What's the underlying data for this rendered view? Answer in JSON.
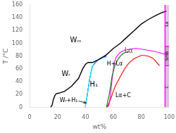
{
  "chart_data": {
    "type": "line",
    "xlabel": "wt%",
    "ylabel": "T /°C",
    "xlim": [
      0,
      100
    ],
    "ylim": [
      0,
      160
    ],
    "xticks": [
      0,
      20,
      40,
      60,
      80,
      100
    ],
    "yticks": [
      0,
      20,
      40,
      60,
      80,
      100,
      120,
      140,
      160
    ],
    "grid": false,
    "series": [
      {
        "color": "black",
        "x": [
          15,
          16,
          17,
          18,
          19,
          20,
          21,
          22,
          25,
          30,
          35,
          38,
          40,
          41,
          42,
          43,
          44,
          45,
          50,
          55,
          60,
          65,
          70,
          75,
          80,
          85,
          90,
          95,
          98
        ],
        "values": [
          0,
          3,
          12,
          18,
          21,
          22,
          22,
          23,
          25,
          33,
          45,
          60,
          67,
          69,
          70,
          70,
          70,
          70,
          75,
          82,
          92,
          100,
          110,
          120,
          130,
          137,
          143,
          148,
          150
        ]
      },
      {
        "color": "cyan",
        "x": [
          40,
          40,
          41,
          42,
          43,
          44,
          45,
          46,
          47,
          48,
          50,
          52,
          54,
          55
        ],
        "values": [
          0,
          3,
          15,
          30,
          44,
          55,
          63,
          68,
          71,
          73,
          75,
          77,
          78,
          78
        ]
      },
      {
        "color": "blue",
        "x": [
          40,
          40,
          41,
          42,
          43,
          44,
          45,
          47,
          49,
          51,
          53,
          55
        ],
        "values": [
          0,
          3,
          15,
          30,
          44,
          55,
          64,
          70,
          74,
          77,
          79,
          80
        ]
      },
      {
        "color": "green",
        "x": [
          55,
          57,
          59,
          61,
          63,
          65,
          67,
          69,
          71
        ],
        "values": [
          0,
          20,
          48,
          65,
          74,
          80,
          84,
          86,
          87
        ]
      },
      {
        "color": "magenta",
        "x": [
          56,
          57,
          58,
          59,
          60,
          61,
          62,
          64,
          66,
          68,
          70,
          73,
          76,
          80,
          85,
          90,
          95,
          98
        ],
        "values": [
          0,
          5,
          20,
          42,
          60,
          72,
          78,
          84,
          87,
          89,
          90,
          91,
          92,
          91,
          89,
          87,
          84,
          82
        ]
      },
      {
        "color": "red",
        "x": [
          55,
          56,
          57,
          58,
          59,
          60,
          62,
          65,
          68,
          70,
          72,
          75,
          78,
          80,
          82,
          85,
          88,
          90,
          93
        ],
        "values": [
          0,
          3,
          8,
          13,
          19,
          26,
          36,
          48,
          60,
          66,
          71,
          76,
          79,
          81,
          81,
          80,
          77,
          73,
          65
        ]
      }
    ],
    "bands": [
      {
        "x": [
          97,
          100
        ],
        "y": [
          95,
          160
        ],
        "color": "#e8c8e8",
        "label": "Lα",
        "label_x": 98.5,
        "label_y": 130
      },
      {
        "x": [
          97,
          100
        ],
        "y": [
          65,
          95
        ],
        "color": "#d4a0d4",
        "label": "SmB",
        "label_x": 98.5,
        "label_y": 80
      },
      {
        "x": [
          97,
          100
        ],
        "y": [
          0,
          65
        ],
        "color": "#e0c0e0",
        "label": "C",
        "label_x": 98.5,
        "label_y": 32
      }
    ],
    "vline": {
      "x": 97,
      "color": "magenta"
    },
    "annotations": [
      {
        "text": "Wₘ",
        "x": 33,
        "y": 105
      },
      {
        "text": "Wᵣ",
        "x": 26,
        "y": 52
      },
      {
        "text": "H₁",
        "x": 46,
        "y": 35
      },
      {
        "text": "Lα",
        "x": 71,
        "y": 88,
        "color": "#555555"
      },
      {
        "text": "Lα+C",
        "x": 67,
        "y": 18
      },
      {
        "text": "H+Lα",
        "x": 61,
        "y": 68
      },
      {
        "text": "Wᵣ+H₁",
        "x": 28,
        "y": 11,
        "arrow_from": [
          35,
          10
        ],
        "arrow_to": [
          40.5,
          7
        ]
      }
    ]
  }
}
